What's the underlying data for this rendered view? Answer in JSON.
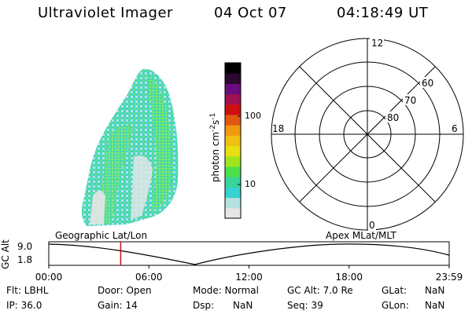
{
  "header": {
    "instrument": "Ultraviolet Imager",
    "date": "04 Oct 07",
    "time": "04:18:49 UT"
  },
  "colorbar": {
    "label": "photon cm^-2 s^-1",
    "ticks": [
      "100",
      "10"
    ],
    "colors": [
      "#e6e6e6",
      "#b4e0e0",
      "#36d2d2",
      "#38d49a",
      "#4ce04c",
      "#a0e41e",
      "#e8e010",
      "#f0c010",
      "#f09810",
      "#e05810",
      "#d01010",
      "#a01050",
      "#6a0c80",
      "#2a0830",
      "#000000"
    ]
  },
  "polar_plot": {
    "mlt_labels": {
      "top": "12",
      "right": "6",
      "bottom": "0",
      "left": "18"
    },
    "lat_labels": [
      "60",
      "70",
      "80"
    ]
  },
  "altitude_plot": {
    "ylabel": "GC Alt",
    "yticks": [
      "9.0",
      "1.8"
    ],
    "left_title": "Geographic Lat/Lon",
    "right_title": "Apex  MLat/MLT",
    "xticks": [
      "00:00",
      "06:00",
      "12:00",
      "18:00",
      "23:59"
    ],
    "marker_time_hours": 4.31,
    "marker_color": "#d01010"
  },
  "info": {
    "flt_label": "Flt: LBHL",
    "door_label": "Door: Open",
    "mode_label": "Mode: Normal",
    "gcalt_label": "GC Alt: 7.0 Re",
    "glat_label": "GLat:",
    "glat_value": "NaN",
    "ip_label": "IP: 36.0",
    "gain_label": "Gain: 14",
    "dsp_label": "Dsp:",
    "dsp_value": "NaN",
    "seq_label": "Seq: 39",
    "glon_label": "GLon:",
    "glon_value": "NaN"
  }
}
